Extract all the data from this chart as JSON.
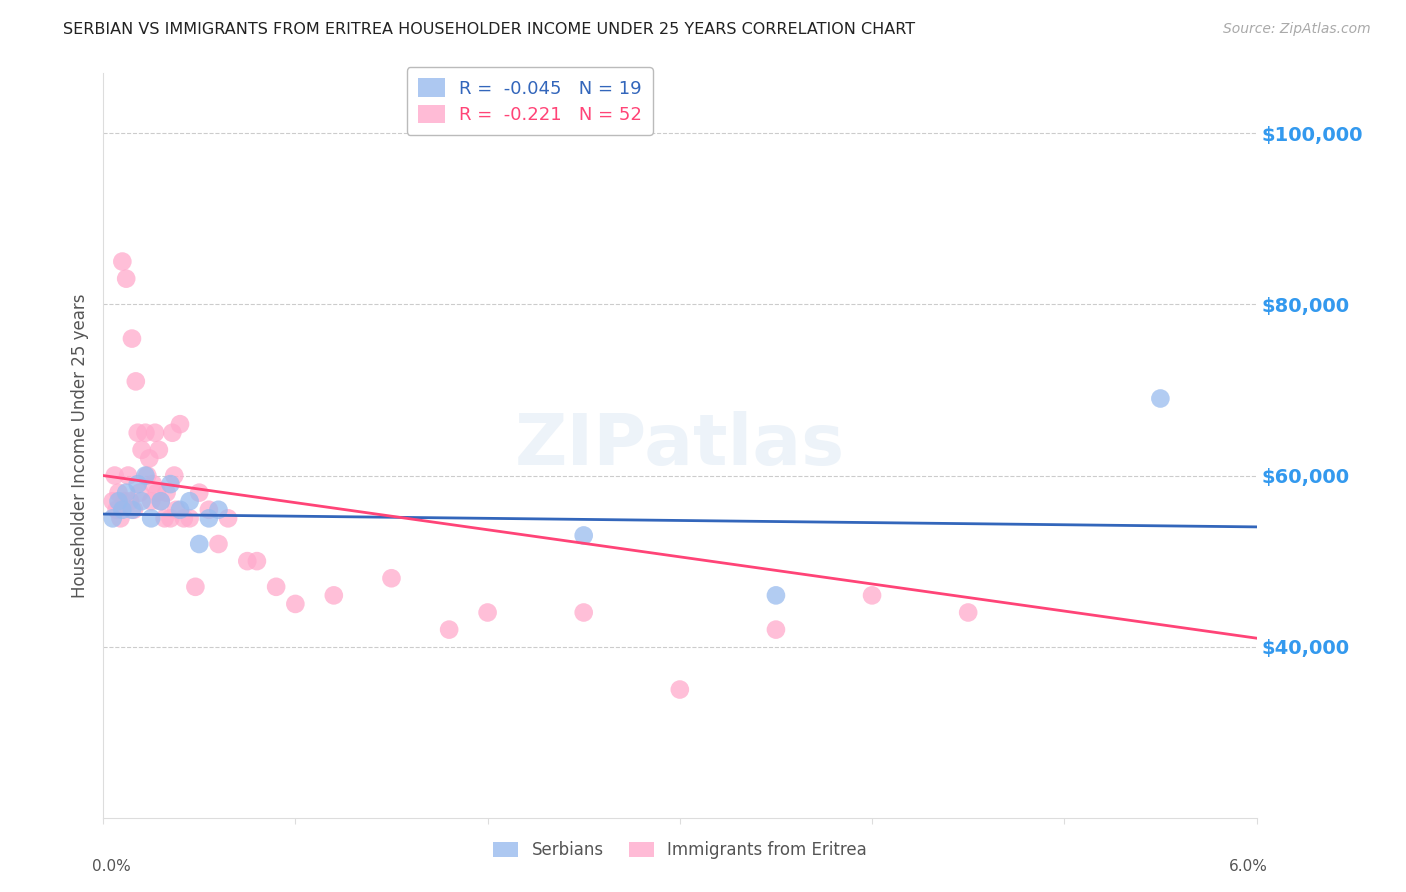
{
  "title": "SERBIAN VS IMMIGRANTS FROM ERITREA HOUSEHOLDER INCOME UNDER 25 YEARS CORRELATION CHART",
  "source": "Source: ZipAtlas.com",
  "ylabel": "Householder Income Under 25 years",
  "xlim": [
    0.0,
    6.0
  ],
  "ylim": [
    20000,
    107000
  ],
  "yticks": [
    40000,
    60000,
    80000,
    100000
  ],
  "ytick_labels": [
    "$40,000",
    "$60,000",
    "$80,000",
    "$100,000"
  ],
  "background_color": "#ffffff",
  "grid_color": "#cccccc",
  "title_color": "#222222",
  "source_color": "#aaaaaa",
  "axis_label_color": "#555555",
  "blue_scatter_color": "#99bbee",
  "pink_scatter_color": "#ffaacc",
  "blue_line_color": "#3366bb",
  "pink_line_color": "#ff4477",
  "ytick_color": "#3399ee",
  "xtick_color": "#555555",
  "legend_R_blue": "-0.045",
  "legend_N_blue": "19",
  "legend_R_pink": "-0.221",
  "legend_N_pink": "52",
  "legend_label_blue": "Serbians",
  "legend_label_pink": "Immigrants from Eritrea",
  "watermark": "ZIPatlas",
  "serbians_x": [
    0.05,
    0.08,
    0.1,
    0.12,
    0.15,
    0.18,
    0.2,
    0.22,
    0.25,
    0.3,
    0.35,
    0.4,
    0.45,
    0.5,
    0.55,
    0.6,
    2.5,
    3.5,
    5.5
  ],
  "serbians_y": [
    55000,
    57000,
    56000,
    58000,
    56000,
    59000,
    57000,
    60000,
    55000,
    57000,
    59000,
    56000,
    57000,
    52000,
    55000,
    56000,
    53000,
    46000,
    69000
  ],
  "eritrea_x": [
    0.05,
    0.06,
    0.07,
    0.08,
    0.09,
    0.1,
    0.11,
    0.12,
    0.13,
    0.14,
    0.15,
    0.16,
    0.17,
    0.18,
    0.19,
    0.2,
    0.22,
    0.23,
    0.24,
    0.25,
    0.26,
    0.27,
    0.28,
    0.29,
    0.3,
    0.32,
    0.33,
    0.35,
    0.36,
    0.37,
    0.38,
    0.4,
    0.42,
    0.45,
    0.48,
    0.5,
    0.55,
    0.6,
    0.65,
    0.75,
    0.8,
    0.9,
    1.0,
    1.2,
    1.5,
    1.8,
    2.0,
    2.5,
    3.0,
    3.5,
    4.0,
    4.5
  ],
  "eritrea_y": [
    57000,
    60000,
    56000,
    58000,
    55000,
    85000,
    57000,
    83000,
    60000,
    57000,
    76000,
    56000,
    71000,
    65000,
    58000,
    63000,
    65000,
    60000,
    62000,
    57000,
    59000,
    65000,
    58000,
    63000,
    57000,
    55000,
    58000,
    55000,
    65000,
    60000,
    56000,
    66000,
    55000,
    55000,
    47000,
    58000,
    56000,
    52000,
    55000,
    50000,
    50000,
    47000,
    45000,
    46000,
    48000,
    42000,
    44000,
    44000,
    35000,
    42000,
    46000,
    44000
  ]
}
